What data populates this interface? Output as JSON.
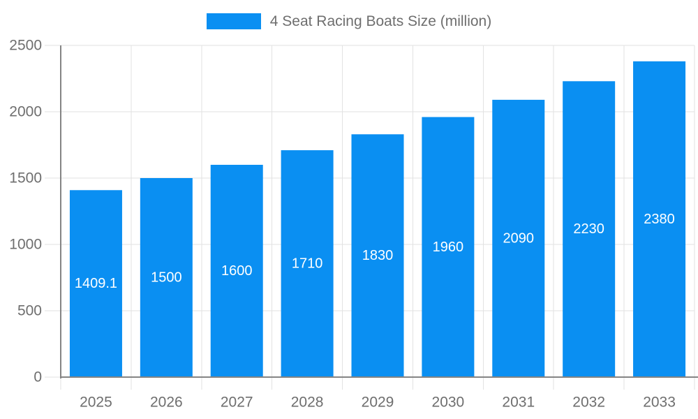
{
  "legend": {
    "label": "4 Seat Racing Boats Size (million)"
  },
  "chart_data": {
    "type": "bar",
    "title": "4 Seat Racing Boats Size (million)",
    "categories": [
      "2025",
      "2026",
      "2027",
      "2028",
      "2029",
      "2030",
      "2031",
      "2032",
      "2033"
    ],
    "values": [
      1409.1,
      1500,
      1600,
      1710,
      1830,
      1960,
      2090,
      2230,
      2380
    ],
    "value_labels": [
      "1409.1",
      "1500",
      "1600",
      "1710",
      "1830",
      "1960",
      "2090",
      "2230",
      "2380"
    ],
    "xlabel": "",
    "ylabel": "",
    "ylim": [
      0,
      2500
    ],
    "yticks": [
      0,
      500,
      1000,
      1500,
      2000,
      2500
    ],
    "grid": true,
    "legend_position": "top",
    "bar_value_position": "center-inside",
    "colors": {
      "bar": "#0a8ff2",
      "bar_label": "#ffffff",
      "grid": "#e2e2e2",
      "axis": "#848484",
      "tick_text": "#6e6e6e",
      "legend_text": "#6e6e6e",
      "background": "#ffffff"
    }
  }
}
